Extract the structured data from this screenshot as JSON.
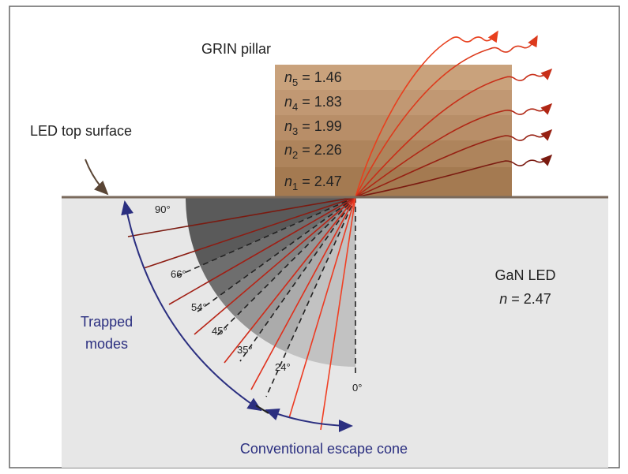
{
  "pillar_title": "GRIN pillar",
  "surface_label": "LED top surface",
  "layers": [
    {
      "symbol": "n",
      "subscript": "5",
      "rest": " = 1.46"
    },
    {
      "symbol": "n",
      "subscript": "4",
      "rest": " = 1.83"
    },
    {
      "symbol": "n",
      "subscript": "3",
      "rest": " = 1.99"
    },
    {
      "symbol": "n",
      "subscript": "2",
      "rest": " = 2.26"
    },
    {
      "symbol": "n",
      "subscript": "1",
      "rest": " = 2.47"
    }
  ],
  "angles": [
    "90°",
    "66°",
    "54°",
    "45°",
    "35°",
    "24°",
    "0°"
  ],
  "material": {
    "name": "GaN LED",
    "symbol": "n",
    "rest": " = 2.47"
  },
  "trapped": [
    "Trapped",
    "modes"
  ],
  "escape_cone": "Conventional escape cone"
}
